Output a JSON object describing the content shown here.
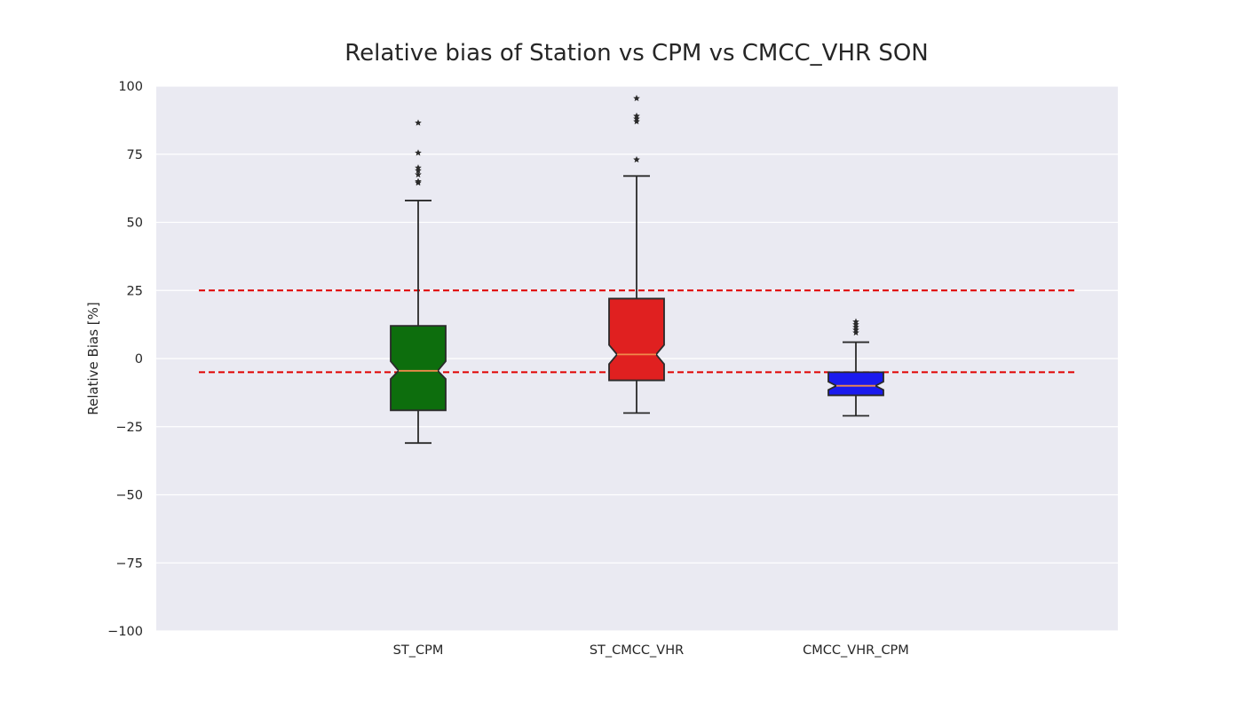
{
  "chart_data": {
    "type": "box",
    "title": "Relative bias of Station vs CPM vs CMCC_VHR SON",
    "xlabel": "",
    "ylabel": "Relative Bias [%]",
    "ylim": [
      -100,
      100
    ],
    "yticks": [
      100,
      75,
      50,
      25,
      0,
      -25,
      -50,
      -75,
      -100
    ],
    "ytick_labels": [
      "100",
      "75",
      "50",
      "25",
      "0",
      "−25",
      "−50",
      "−75",
      "−100"
    ],
    "grid": true,
    "notched": true,
    "categories": [
      "ST_CPM",
      "ST_CMCC_VHR",
      "CMCC_VHR_CPM"
    ],
    "boxes": [
      {
        "name": "ST_CPM",
        "color": "#0d6e0d",
        "whisker_low": -31,
        "q1": -19,
        "median": -4.5,
        "q3": 12,
        "whisker_high": 58,
        "notch_low": -7.5,
        "notch_high": -1,
        "outliers": [
          64.5,
          65,
          67.5,
          69,
          70,
          75.5,
          86.5
        ]
      },
      {
        "name": "ST_CMCC_VHR",
        "color": "#e02020",
        "whisker_low": -20,
        "q1": -8,
        "median": 1.5,
        "q3": 22,
        "whisker_high": 67,
        "notch_low": -2,
        "notch_high": 5,
        "outliers": [
          73,
          87,
          88,
          89,
          95.5
        ]
      },
      {
        "name": "CMCC_VHR_CPM",
        "color": "#1a1aee",
        "whisker_low": -21,
        "q1": -13.5,
        "median": -10,
        "q3": -5,
        "whisker_high": 6,
        "notch_low": -11.5,
        "notch_high": -8.5,
        "outliers": [
          9.5,
          10.5,
          11.5,
          12.5,
          13.5
        ]
      }
    ],
    "reference_lines": [
      {
        "y": 25,
        "color": "#e00000",
        "style": "dashed"
      },
      {
        "y": -5,
        "color": "#e00000",
        "style": "dashed"
      }
    ],
    "median_color": "#f08a4b",
    "background_color": "#eaeaf2"
  }
}
